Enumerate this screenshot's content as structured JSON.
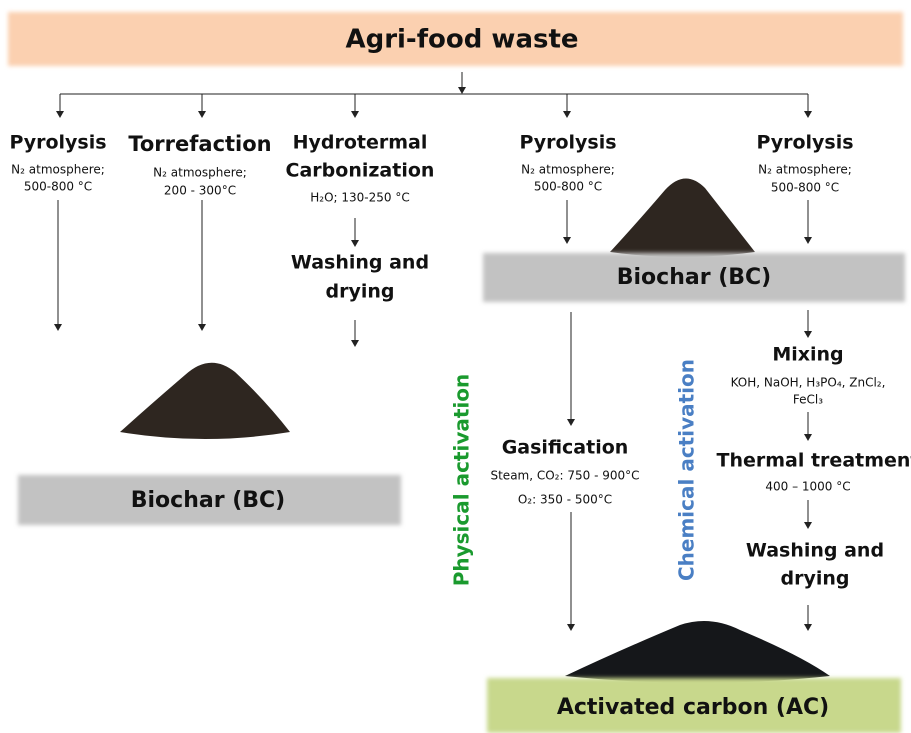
{
  "header": {
    "title": "Agri-food waste"
  },
  "left_branch": {
    "pyrolysis": {
      "title": "Pyrolysis",
      "line1": "N₂ atmosphere;",
      "line2": "500-800 °C"
    },
    "torrefaction": {
      "title": "Torrefaction",
      "line1": "N₂ atmosphere;",
      "line2": "200 - 300°C"
    },
    "htc": {
      "title1": "Hydrotermal",
      "title2": "Carbonization",
      "line1": "H₂O; 130-250 °C",
      "step1": "Washing and",
      "step2": "drying"
    },
    "product": "Biochar (BC)"
  },
  "right_branch": {
    "pyrolysis_a": {
      "title": "Pyrolysis",
      "line1": "N₂ atmosphere;",
      "line2": "500-800 °C"
    },
    "pyrolysis_b": {
      "title": "Pyrolysis",
      "line1": "N₂ atmosphere;",
      "line2": "500-800 °C"
    },
    "intermediate": "Biochar (BC)",
    "physical": {
      "label": "Physical activation",
      "step": "Gasification",
      "line1": "Steam, CO₂: 750 - 900°C",
      "line2": "O₂: 350 - 500°C"
    },
    "chemical": {
      "label": "Chemical activation",
      "step1": "Mixing",
      "line1": "KOH, NaOH, H₃PO₄, ZnCl₂,",
      "line2": "FeCl₃",
      "step2": "Thermal treatment",
      "line3": "400 – 1000 °C",
      "step3a": "Washing and",
      "step3b": "drying"
    },
    "product": "Activated carbon (AC)"
  }
}
